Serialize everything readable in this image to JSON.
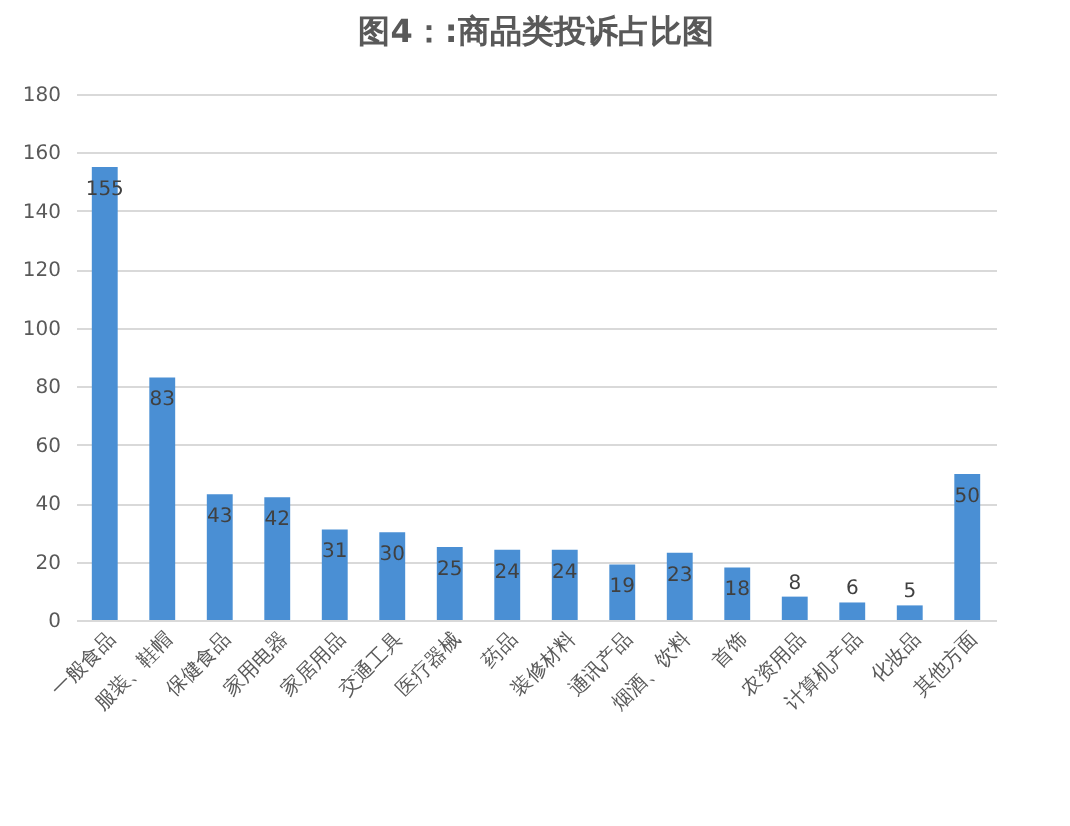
{
  "chart_data": {
    "type": "bar",
    "title": "图4：:商品类投诉占比图",
    "categories": [
      "一般食品",
      "服装、鞋帽",
      "保健食品",
      "家用电器",
      "家居用品",
      "交通工具",
      "医疗器械",
      "药品",
      "装修材料",
      "通讯产品",
      "烟酒、饮料",
      "首饰",
      "农资用品",
      "计算机产品",
      "化妆品",
      "其他方面"
    ],
    "values": [
      155,
      83,
      43,
      42,
      31,
      30,
      25,
      24,
      24,
      19,
      23,
      18,
      8,
      6,
      5,
      50
    ],
    "color": "#4a8fd4",
    "ylim": [
      0,
      180
    ],
    "yticks": [
      0,
      20,
      40,
      60,
      80,
      100,
      120,
      140,
      160,
      180
    ],
    "grid": "y",
    "data_labels": true
  }
}
